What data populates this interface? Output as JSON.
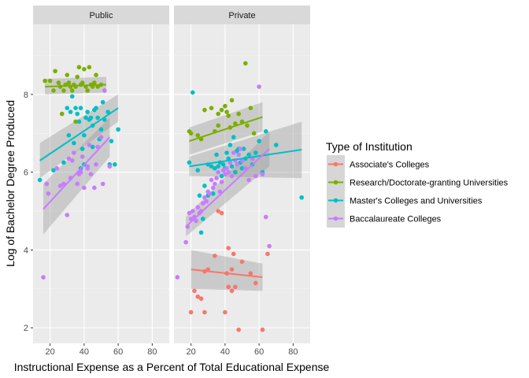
{
  "chart_data": {
    "type": "scatter",
    "facets": [
      "Public",
      "Private"
    ],
    "xlabel": "Instructional Expense as a Percent of Total Educational Expense",
    "ylabel": "Log of Bachelor Degree Produced",
    "xlim": [
      10,
      90
    ],
    "ylim": [
      1.6,
      9.8
    ],
    "x_ticks": [
      20,
      40,
      60,
      80
    ],
    "y_ticks": [
      2,
      4,
      6,
      8
    ],
    "grid": true,
    "legend": {
      "title": "Type of Institution",
      "position": "right"
    },
    "series": [
      {
        "name": "Associate's Colleges",
        "color": "#F8766D",
        "points": {
          "Public": [],
          "Private": [
            [
              20,
              2.4
            ],
            [
              22,
              2.95
            ],
            [
              24,
              2.8
            ],
            [
              26,
              2.75
            ],
            [
              28,
              2.4
            ],
            [
              30,
              3.5
            ],
            [
              34,
              3.85
            ],
            [
              38,
              4.95
            ],
            [
              40,
              2.4
            ],
            [
              41,
              3.4
            ],
            [
              42,
              3.05
            ],
            [
              42,
              4.05
            ],
            [
              44,
              2.95
            ],
            [
              44,
              3.5
            ],
            [
              45,
              3.9
            ],
            [
              46,
              3.05
            ],
            [
              48,
              1.95
            ],
            [
              50,
              3.7
            ],
            [
              55,
              3.4
            ],
            [
              58,
              3.15
            ],
            [
              62,
              1.95
            ],
            [
              65,
              3.9
            ],
            [
              36,
              5.0
            ],
            [
              28,
              3.45
            ]
          ]
        },
        "fit": {
          "Public": null,
          "Private": {
            "x": [
              20,
              62
            ],
            "y": [
              3.5,
              3.3
            ],
            "se_low": [
              3.0,
              2.95
            ],
            "se_high": [
              4.0,
              3.65
            ]
          }
        }
      },
      {
        "name": "Research/Doctorate-granting Universities",
        "color": "#7CAE00",
        "points": {
          "Public": [
            [
              17,
              8.35
            ],
            [
              20,
              8.35
            ],
            [
              22,
              8.1
            ],
            [
              23,
              8.6
            ],
            [
              25,
              8.3
            ],
            [
              26,
              8.2
            ],
            [
              28,
              8.1
            ],
            [
              29,
              8.25
            ],
            [
              30,
              8.5
            ],
            [
              31,
              8.3
            ],
            [
              32,
              8.2
            ],
            [
              33,
              8.1
            ],
            [
              34,
              8.25
            ],
            [
              35,
              8.2
            ],
            [
              36,
              8.45
            ],
            [
              37,
              8.7
            ],
            [
              38,
              8.25
            ],
            [
              39,
              8.3
            ],
            [
              40,
              8.65
            ],
            [
              41,
              8.2
            ],
            [
              42,
              8.1
            ],
            [
              43,
              8.7
            ],
            [
              44,
              8.25
            ],
            [
              45,
              8.2
            ],
            [
              46,
              8.3
            ],
            [
              47,
              8.5
            ],
            [
              48,
              8.2
            ],
            [
              50,
              8.25
            ],
            [
              52,
              8.1
            ],
            [
              35,
              7.3
            ],
            [
              27,
              7.5
            ]
          ],
          "Private": [
            [
              19,
              7.05
            ],
            [
              20,
              7.0
            ],
            [
              24,
              6.95
            ],
            [
              26,
              6.85
            ],
            [
              28,
              7.6
            ],
            [
              32,
              7.65
            ],
            [
              34,
              7.05
            ],
            [
              36,
              7.2
            ],
            [
              38,
              7.6
            ],
            [
              40,
              7.7
            ],
            [
              41,
              7.55
            ],
            [
              42,
              7.45
            ],
            [
              43,
              7.15
            ],
            [
              44,
              7.85
            ],
            [
              46,
              7.25
            ],
            [
              48,
              7.5
            ],
            [
              50,
              7.3
            ],
            [
              52,
              8.8
            ],
            [
              53,
              7.2
            ],
            [
              55,
              7.65
            ],
            [
              57,
              7.0
            ],
            [
              36,
              7.5
            ]
          ]
        },
        "fit": {
          "Public": {
            "x": [
              17,
              53
            ],
            "y": [
              8.2,
              8.25
            ],
            "se_low": [
              8.0,
              8.05
            ],
            "se_high": [
              8.4,
              8.45
            ]
          },
          "Private": {
            "x": [
              19,
              62
            ],
            "y": [
              6.8,
              7.42
            ],
            "se_low": [
              6.45,
              7.05
            ],
            "se_high": [
              7.15,
              7.8
            ]
          }
        }
      },
      {
        "name": "Master's Colleges and Universities",
        "color": "#00BFC4",
        "points": {
          "Public": [
            [
              14,
              5.8
            ],
            [
              22,
              6.05
            ],
            [
              28,
              6.25
            ],
            [
              30,
              7.65
            ],
            [
              31,
              6.95
            ],
            [
              32,
              7.55
            ],
            [
              33,
              7.95
            ],
            [
              34,
              6.75
            ],
            [
              35,
              7.65
            ],
            [
              36,
              7.5
            ],
            [
              37,
              7.3
            ],
            [
              38,
              7.65
            ],
            [
              39,
              6.6
            ],
            [
              40,
              6.95
            ],
            [
              41,
              7.4
            ],
            [
              42,
              7.55
            ],
            [
              43,
              7.35
            ],
            [
              44,
              7.4
            ],
            [
              45,
              7.2
            ],
            [
              46,
              7.6
            ],
            [
              47,
              7.65
            ],
            [
              48,
              7.4
            ],
            [
              49,
              6.85
            ],
            [
              50,
              7.1
            ],
            [
              51,
              7.8
            ],
            [
              52,
              7.35
            ],
            [
              54,
              7.55
            ],
            [
              55,
              6.2
            ],
            [
              56,
              6.8
            ],
            [
              58,
              6.2
            ],
            [
              60,
              7.1
            ],
            [
              40,
              6.2
            ],
            [
              45,
              6.65
            ],
            [
              38,
              6.1
            ]
          ],
          "Private": [
            [
              19,
              6.25
            ],
            [
              21,
              8.05
            ],
            [
              24,
              6.05
            ],
            [
              25,
              5.4
            ],
            [
              26,
              4.45
            ],
            [
              27,
              4.8
            ],
            [
              28,
              5.65
            ],
            [
              30,
              6.2
            ],
            [
              32,
              6.15
            ],
            [
              33,
              5.45
            ],
            [
              34,
              6.1
            ],
            [
              35,
              6.45
            ],
            [
              36,
              6.15
            ],
            [
              37,
              6.25
            ],
            [
              38,
              5.9
            ],
            [
              39,
              6.2
            ],
            [
              40,
              6.1
            ],
            [
              41,
              6.5
            ],
            [
              42,
              6.35
            ],
            [
              43,
              6.7
            ],
            [
              44,
              6.15
            ],
            [
              45,
              6.9
            ],
            [
              46,
              6.0
            ],
            [
              47,
              6.55
            ],
            [
              48,
              6.6
            ],
            [
              49,
              6.25
            ],
            [
              50,
              6.1
            ],
            [
              51,
              6.6
            ],
            [
              52,
              6.35
            ],
            [
              54,
              6.45
            ],
            [
              56,
              6.2
            ],
            [
              58,
              6.5
            ],
            [
              60,
              6.8
            ],
            [
              62,
              6.0
            ],
            [
              64,
              7.05
            ],
            [
              70,
              6.7
            ],
            [
              85,
              5.35
            ],
            [
              30,
              5.4
            ]
          ]
        },
        "fit": {
          "Public": {
            "x": [
              14,
              60
            ],
            "y": [
              6.3,
              7.65
            ],
            "se_low": [
              5.85,
              7.3
            ],
            "se_high": [
              6.75,
              8.0
            ]
          },
          "Private": {
            "x": [
              19,
              85
            ],
            "y": [
              6.15,
              6.58
            ],
            "se_low": [
              5.9,
              5.85
            ],
            "se_high": [
              6.4,
              7.3
            ]
          }
        }
      },
      {
        "name": "Baccalaureate Colleges",
        "color": "#C77CFF",
        "points": {
          "Public": [
            [
              16,
              3.3
            ],
            [
              18,
              5.7
            ],
            [
              19,
              5.45
            ],
            [
              24,
              6.1
            ],
            [
              26,
              5.65
            ],
            [
              28,
              5.7
            ],
            [
              30,
              4.9
            ],
            [
              31,
              6.35
            ],
            [
              32,
              5.85
            ],
            [
              33,
              6.3
            ],
            [
              34,
              6.5
            ],
            [
              36,
              5.7
            ],
            [
              37,
              5.95
            ],
            [
              38,
              6.0
            ],
            [
              39,
              6.4
            ],
            [
              40,
              5.6
            ],
            [
              42,
              6.1
            ],
            [
              43,
              6.7
            ],
            [
              44,
              5.95
            ],
            [
              46,
              5.6
            ],
            [
              47,
              6.2
            ],
            [
              48,
              6.65
            ],
            [
              50,
              6.9
            ],
            [
              51,
              5.7
            ],
            [
              52,
              8.1
            ],
            [
              55,
              6.15
            ],
            [
              42,
              6.15
            ]
          ],
          "Private": [
            [
              17,
              4.2
            ],
            [
              18,
              4.6
            ],
            [
              19,
              4.95
            ],
            [
              20,
              4.8
            ],
            [
              21,
              5.0
            ],
            [
              22,
              4.85
            ],
            [
              23,
              4.75
            ],
            [
              24,
              5.1
            ],
            [
              25,
              4.95
            ],
            [
              26,
              5.0
            ],
            [
              27,
              5.2
            ],
            [
              28,
              5.35
            ],
            [
              29,
              5.25
            ],
            [
              30,
              5.5
            ],
            [
              31,
              5.45
            ],
            [
              32,
              5.8
            ],
            [
              33,
              5.6
            ],
            [
              34,
              5.7
            ],
            [
              35,
              5.85
            ],
            [
              36,
              6.0
            ],
            [
              37,
              5.5
            ],
            [
              38,
              5.75
            ],
            [
              39,
              6.05
            ],
            [
              40,
              5.95
            ],
            [
              41,
              6.1
            ],
            [
              42,
              6.0
            ],
            [
              43,
              6.25
            ],
            [
              44,
              5.9
            ],
            [
              45,
              6.5
            ],
            [
              46,
              6.3
            ],
            [
              47,
              6.2
            ],
            [
              48,
              6.45
            ],
            [
              49,
              6.6
            ],
            [
              50,
              6.3
            ],
            [
              52,
              6.1
            ],
            [
              54,
              5.8
            ],
            [
              56,
              6.35
            ],
            [
              58,
              5.9
            ],
            [
              60,
              8.2
            ],
            [
              62,
              5.95
            ],
            [
              64,
              4.85
            ],
            [
              66,
              4.1
            ],
            [
              12,
              3.3
            ]
          ]
        },
        "fit": {
          "Public": {
            "x": [
              16,
              55
            ],
            "y": [
              5.05,
              6.9
            ],
            "se_low": [
              4.4,
              6.4
            ],
            "se_high": [
              5.7,
              7.4
            ]
          },
          "Private": {
            "x": [
              17,
              66
            ],
            "y": [
              4.6,
              6.6
            ],
            "se_low": [
              4.35,
              6.15
            ],
            "se_high": [
              4.85,
              7.05
            ]
          }
        }
      }
    ]
  }
}
